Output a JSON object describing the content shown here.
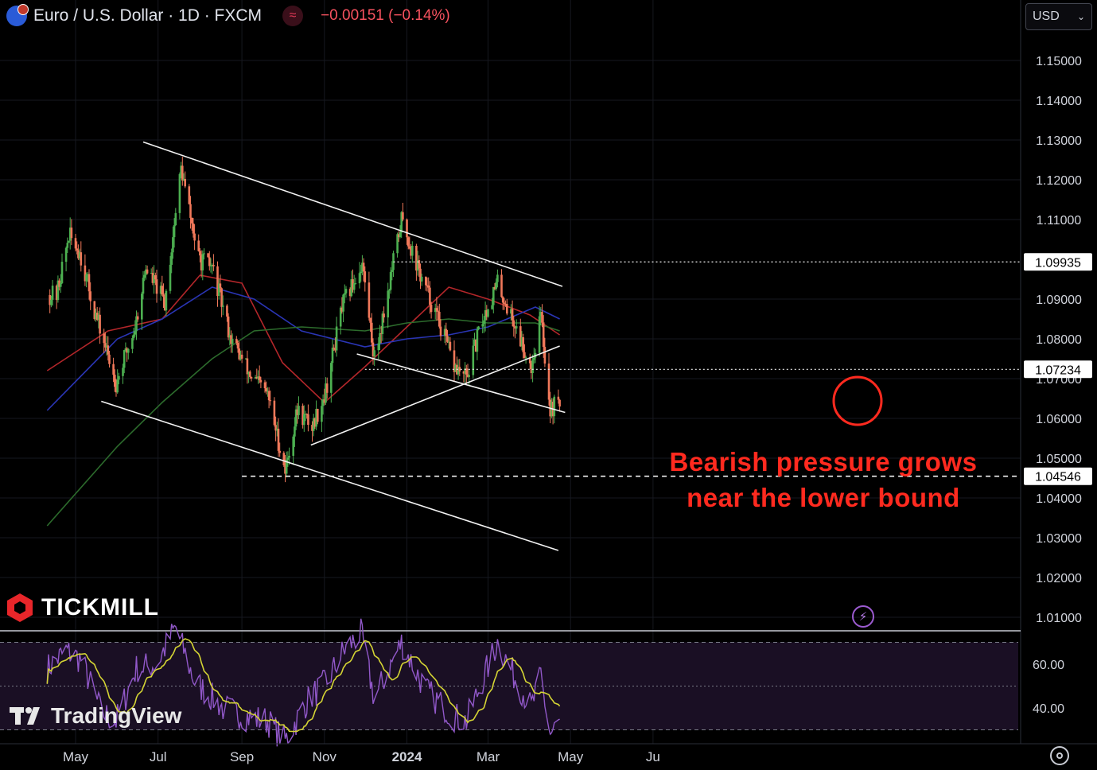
{
  "header": {
    "symbol": "Euro / U.S. Dollar · 1D · FXCM",
    "change": "−0.00151 (−0.14%)",
    "flag_icon": "eur-usd-flag-icon",
    "indicator_icon": "indicator-wave-icon"
  },
  "currency_select": {
    "value": "USD"
  },
  "brand": {
    "name": "TICKMILL",
    "icon": "tickmill-logo-icon"
  },
  "platform": {
    "name": "TradingView",
    "icon": "tradingview-logo-icon"
  },
  "annotation": {
    "line1": "Bearish pressure grows",
    "line2": "near the lower bound"
  },
  "colors": {
    "background": "#000000",
    "up": "#4caf50",
    "down": "#f0785a",
    "ma_red": "#b3262a",
    "ma_blue": "#2a35b5",
    "ma_green": "#2c6b2c",
    "rsi": "#9158c9",
    "rsi_ma": "#d4d434",
    "annotation": "#ff2a1f",
    "price_label_bg": "#ffffff"
  },
  "chart_data": {
    "type": "candlestick",
    "symbol": "EURUSD",
    "timeframe": "1D",
    "x_ticks": [
      "May",
      "Jul",
      "Sep",
      "Nov",
      "2024",
      "Mar",
      "May",
      "Ju"
    ],
    "y_ticks": [
      "1.15000",
      "1.14000",
      "1.13000",
      "1.12000",
      "1.11000",
      "1.09000",
      "1.08000",
      "1.07000",
      "1.06000",
      "1.05000",
      "1.04000",
      "1.03000",
      "1.02000",
      "1.01000"
    ],
    "ylim": [
      1.003,
      1.158
    ],
    "price_labels": [
      {
        "value": 1.09935,
        "text": "1.09935",
        "style": "dotted"
      },
      {
        "value": 1.07234,
        "text": "1.07234",
        "style": "dotted"
      },
      {
        "value": 1.04546,
        "text": "1.04546",
        "style": "dashed"
      }
    ],
    "price_anchors": [
      [
        "2023-04-17",
        1.091
      ],
      [
        "2023-04-26",
        1.106
      ],
      [
        "2023-05-04",
        1.102
      ],
      [
        "2023-05-15",
        1.087
      ],
      [
        "2023-05-31",
        1.069
      ],
      [
        "2023-06-14",
        1.083
      ],
      [
        "2023-06-22",
        1.098
      ],
      [
        "2023-07-06",
        1.089
      ],
      [
        "2023-07-18",
        1.123
      ],
      [
        "2023-07-31",
        1.1
      ],
      [
        "2023-08-10",
        1.098
      ],
      [
        "2023-08-24",
        1.08
      ],
      [
        "2023-09-07",
        1.071
      ],
      [
        "2023-09-20",
        1.066
      ],
      [
        "2023-10-03",
        1.047
      ],
      [
        "2023-10-12",
        1.062
      ],
      [
        "2023-10-23",
        1.058
      ],
      [
        "2023-11-02",
        1.067
      ],
      [
        "2023-11-14",
        1.088
      ],
      [
        "2023-11-29",
        1.099
      ],
      [
        "2023-12-08",
        1.075
      ],
      [
        "2023-12-18",
        1.092
      ],
      [
        "2023-12-28",
        1.11
      ],
      [
        "2024-01-11",
        1.096
      ],
      [
        "2024-01-25",
        1.084
      ],
      [
        "2024-02-05",
        1.073
      ],
      [
        "2024-02-14",
        1.07
      ],
      [
        "2024-02-26",
        1.085
      ],
      [
        "2024-03-08",
        1.094
      ],
      [
        "2024-03-19",
        1.085
      ],
      [
        "2024-04-02",
        1.073
      ],
      [
        "2024-04-09",
        1.086
      ],
      [
        "2024-04-16",
        1.062
      ],
      [
        "2024-04-23",
        1.065
      ]
    ],
    "moving_averages": [
      {
        "color": "#b3262a",
        "points": [
          [
            "2023-04-10",
            1.072
          ],
          [
            "2023-05-25",
            1.082
          ],
          [
            "2023-07-04",
            1.085
          ],
          [
            "2023-08-01",
            1.096
          ],
          [
            "2023-09-01",
            1.094
          ],
          [
            "2023-10-01",
            1.074
          ],
          [
            "2023-11-01",
            1.064
          ],
          [
            "2023-12-01",
            1.073
          ],
          [
            "2024-01-01",
            1.083
          ],
          [
            "2024-02-01",
            1.093
          ],
          [
            "2024-03-01",
            1.09
          ],
          [
            "2024-04-01",
            1.086
          ],
          [
            "2024-04-23",
            1.081
          ]
        ]
      },
      {
        "color": "#2a35b5",
        "points": [
          [
            "2023-04-10",
            1.062
          ],
          [
            "2023-06-01",
            1.08
          ],
          [
            "2023-07-04",
            1.085
          ],
          [
            "2023-08-10",
            1.093
          ],
          [
            "2023-09-10",
            1.09
          ],
          [
            "2023-10-15",
            1.082
          ],
          [
            "2023-12-01",
            1.078
          ],
          [
            "2024-01-01",
            1.08
          ],
          [
            "2024-02-01",
            1.081
          ],
          [
            "2024-03-01",
            1.083
          ],
          [
            "2024-04-05",
            1.088
          ],
          [
            "2024-04-23",
            1.085
          ]
        ]
      },
      {
        "color": "#2c6b2c",
        "points": [
          [
            "2023-04-10",
            1.033
          ],
          [
            "2023-06-01",
            1.053
          ],
          [
            "2023-07-04",
            1.064
          ],
          [
            "2023-08-10",
            1.075
          ],
          [
            "2023-09-10",
            1.082
          ],
          [
            "2023-10-15",
            1.083
          ],
          [
            "2023-12-01",
            1.082
          ],
          [
            "2024-01-01",
            1.084
          ],
          [
            "2024-02-01",
            1.085
          ],
          [
            "2024-03-01",
            1.084
          ],
          [
            "2024-04-05",
            1.084
          ],
          [
            "2024-04-23",
            1.082
          ]
        ]
      }
    ],
    "trendlines": [
      {
        "from": [
          "2023-06-20",
          1.1295
        ],
        "to": [
          "2024-04-25",
          1.0932
        ]
      },
      {
        "from": [
          "2023-05-20",
          1.0643
        ],
        "to": [
          "2024-04-22",
          1.0268
        ]
      },
      {
        "from": [
          "2023-11-25",
          1.0762
        ],
        "to": [
          "2024-04-27",
          1.0615
        ]
      },
      {
        "from": [
          "2023-10-22",
          1.0533
        ],
        "to": [
          "2024-04-23",
          1.0782
        ]
      }
    ],
    "rsi": {
      "y_ticks": [
        "60.00",
        "40.00"
      ],
      "ylim": [
        22,
        80
      ],
      "overbought": 70,
      "oversold": 30,
      "mid": 50,
      "anchors": [
        [
          "2023-04-10",
          58
        ],
        [
          "2023-04-24",
          66
        ],
        [
          "2023-05-05",
          62
        ],
        [
          "2023-05-20",
          38
        ],
        [
          "2023-05-31",
          34
        ],
        [
          "2023-06-15",
          58
        ],
        [
          "2023-06-30",
          60
        ],
        [
          "2023-07-14",
          77
        ],
        [
          "2023-07-28",
          52
        ],
        [
          "2023-08-18",
          40
        ],
        [
          "2023-09-05",
          36
        ],
        [
          "2023-09-20",
          34
        ],
        [
          "2023-10-03",
          25
        ],
        [
          "2023-10-20",
          44
        ],
        [
          "2023-11-03",
          52
        ],
        [
          "2023-11-15",
          66
        ],
        [
          "2023-11-28",
          74
        ],
        [
          "2023-12-08",
          44
        ],
        [
          "2023-12-28",
          70
        ],
        [
          "2024-01-15",
          48
        ],
        [
          "2024-02-05",
          36
        ],
        [
          "2024-02-14",
          34
        ],
        [
          "2024-03-08",
          70
        ],
        [
          "2024-03-20",
          55
        ],
        [
          "2024-04-02",
          40
        ],
        [
          "2024-04-09",
          54
        ],
        [
          "2024-04-16",
          28
        ],
        [
          "2024-04-23",
          33
        ]
      ]
    }
  }
}
